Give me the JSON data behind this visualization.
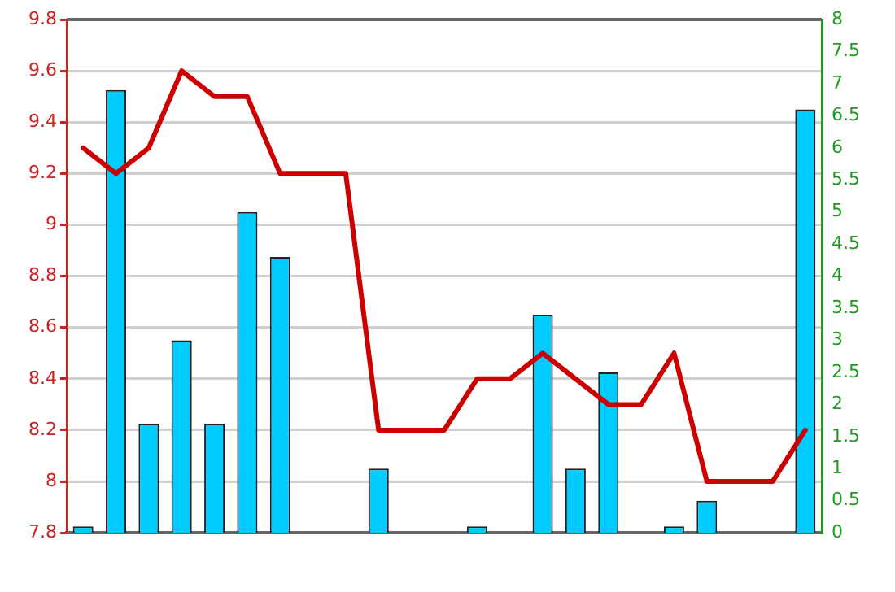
{
  "chart_data": {
    "type": "bar",
    "categories": [
      null,
      null,
      null,
      null,
      null,
      null,
      null,
      null,
      null,
      null,
      null,
      null,
      null,
      null,
      null,
      null,
      null,
      null,
      null,
      null,
      null,
      null,
      null
    ],
    "series": [
      {
        "axis": "y2",
        "color": "#00ccff",
        "values": [
          0.1,
          6.9,
          1.7,
          3,
          1.7,
          5,
          4.3,
          null,
          null,
          1,
          null,
          null,
          0.1,
          null,
          3.4,
          1,
          2.5,
          null,
          0.1,
          0.5,
          null,
          null,
          6.6
        ]
      },
      {
        "type": "line",
        "axis": "y",
        "color": "#cc0000",
        "values": [
          9.3,
          9.2,
          9.3,
          9.6,
          9.5,
          9.5,
          9.2,
          9.2,
          9.2,
          8.2,
          8.2,
          8.2,
          8.4,
          8.4,
          8.5,
          8.4,
          8.3,
          8.3,
          8.5,
          8,
          8,
          8,
          8.2
        ]
      }
    ],
    "ylim": [
      7.8,
      9.8
    ],
    "yticks": [
      7.8,
      8,
      8.2,
      8.4,
      8.6,
      8.8,
      9,
      9.2,
      9.4,
      9.6,
      9.8
    ],
    "y2lim": [
      0,
      8
    ],
    "y2ticks": [
      0,
      0.5,
      1,
      1.5,
      2,
      2.5,
      3,
      3.5,
      4,
      4.5,
      5,
      5.5,
      6,
      6.5,
      7,
      7.5,
      8
    ],
    "grid": "y",
    "legend": false,
    "marker": "none",
    "line_style": "solid"
  }
}
